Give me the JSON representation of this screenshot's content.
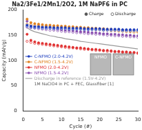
{
  "chart_data": {
    "type": "line",
    "title": "Na2/3Fe1/2Mn1/2O2, 1M NaPF6 in PC",
    "x_label": "Cycle (#)",
    "y_label": "Capacity (mAh/g)",
    "xlim": [
      0,
      30
    ],
    "xticks": [
      0,
      5,
      10,
      15,
      20,
      25,
      30
    ],
    "ylim": [
      0,
      200
    ],
    "yticks": [
      0,
      50,
      100,
      150,
      200
    ],
    "grid": false,
    "marker_legend": [
      {
        "name": "Charge",
        "marker": "filled"
      },
      {
        "name": "Discharge",
        "marker": "open"
      }
    ],
    "annotations": [
      "1M NaClO4 in PC + FEC, Glassfiber [1]"
    ],
    "insets": [
      "NFMO",
      "C-NFMO"
    ],
    "x": [
      1,
      2,
      3,
      4,
      5,
      6,
      7,
      8,
      9,
      10,
      11,
      12,
      13,
      14,
      15,
      16,
      17,
      18,
      19,
      20,
      21,
      22,
      23,
      24,
      25,
      26,
      27,
      28,
      29,
      30
    ],
    "series": [
      {
        "name": "C-NFMO (2.0-4.2V)",
        "color": "#1f3fbf",
        "marker": "circle",
        "values": [
          170,
          168,
          167,
          167,
          166,
          166,
          166,
          165,
          165,
          165,
          165,
          164,
          164,
          164,
          164,
          163,
          163,
          163,
          163,
          163,
          162,
          162,
          162,
          162,
          162,
          161,
          161,
          161,
          161,
          161
        ],
        "discharge": [
          168,
          166,
          165,
          165,
          164,
          164,
          164,
          163,
          163,
          163,
          163,
          162,
          162,
          162,
          162,
          161,
          161,
          161,
          161,
          161,
          160,
          160,
          160,
          160,
          160,
          159,
          159,
          159,
          159,
          159
        ]
      },
      {
        "name": "C-NFMO (1.5-4.2V)",
        "color": "#e08020",
        "marker": "circle",
        "values": [
          182,
          175,
          173,
          172,
          171,
          170,
          170,
          169,
          169,
          168,
          168,
          167,
          167,
          166,
          166,
          165,
          165,
          164,
          164,
          163,
          163,
          162,
          162,
          161,
          161,
          160,
          160,
          159,
          159,
          158
        ],
        "discharge": [
          172,
          171,
          170,
          169,
          168,
          168,
          167,
          167,
          166,
          166,
          165,
          165,
          164,
          164,
          163,
          163,
          162,
          162,
          161,
          161,
          160,
          160,
          159,
          159,
          158,
          158,
          157,
          157,
          156,
          156
        ]
      },
      {
        "name": "NFMO (2.0-4.2V)",
        "color": "#e03030",
        "marker": "circle",
        "values": [
          152,
          140,
          137,
          135,
          134,
          133,
          132,
          131,
          130,
          129,
          128,
          127,
          126,
          125,
          125,
          124,
          123,
          122,
          122,
          121,
          120,
          120,
          119,
          118,
          118,
          117,
          117,
          116,
          116,
          115
        ],
        "discharge": [
          138,
          136,
          134,
          133,
          132,
          131,
          130,
          129,
          128,
          127,
          126,
          125,
          125,
          124,
          123,
          122,
          122,
          121,
          120,
          120,
          119,
          118,
          118,
          117,
          117,
          116,
          116,
          115,
          115,
          114
        ]
      },
      {
        "name": "NFMO (1.5-4.2V)",
        "color": "#8a4fb0",
        "marker": "circle",
        "values": [
          178,
          170,
          168,
          167,
          166,
          165,
          164,
          163,
          162,
          161,
          160,
          160,
          159,
          158,
          157,
          157,
          156,
          155,
          155,
          154,
          153,
          153,
          152,
          152,
          151,
          151,
          150,
          150,
          149,
          149
        ],
        "discharge": [
          166,
          165,
          164,
          163,
          162,
          161,
          160,
          160,
          159,
          158,
          157,
          157,
          156,
          155,
          155,
          154,
          153,
          153,
          152,
          152,
          151,
          150,
          150,
          149,
          149,
          148,
          148,
          147,
          147,
          146
        ]
      },
      {
        "name": "Discharge in reference (1.5V-4.2V)",
        "color": "#999999",
        "marker": "none",
        "line_style": "solid",
        "values": [
          165,
          160,
          157,
          155,
          153,
          151,
          149,
          148,
          146,
          145,
          143,
          142,
          141,
          140,
          138,
          137,
          136,
          135,
          134,
          133,
          132,
          131,
          130,
          129,
          128,
          127,
          126,
          125,
          124,
          123
        ]
      }
    ]
  }
}
